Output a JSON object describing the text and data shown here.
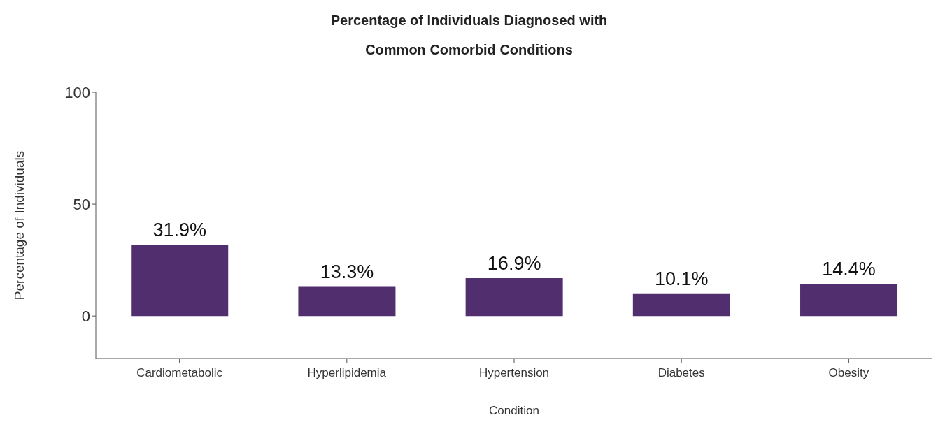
{
  "chart_data": {
    "type": "bar",
    "title": "Percentage of Individuals Diagnosed with Common Comorbid Conditions",
    "xlabel": "Condition",
    "ylabel": "Percentage of Individuals",
    "categories": [
      "Cardiometabolic",
      "Hyperlipidemia",
      "Hypertension",
      "Diabetes",
      "Obesity"
    ],
    "values": [
      31.9,
      13.3,
      16.9,
      10.1,
      14.4
    ],
    "value_labels": [
      "31.9%",
      "13.3%",
      "16.9%",
      "10.1%",
      "14.4%"
    ],
    "color": "#512e6e",
    "ylim": [
      -19,
      100
    ],
    "yticks": [
      0,
      50,
      100
    ],
    "grid": false,
    "legend": false
  }
}
